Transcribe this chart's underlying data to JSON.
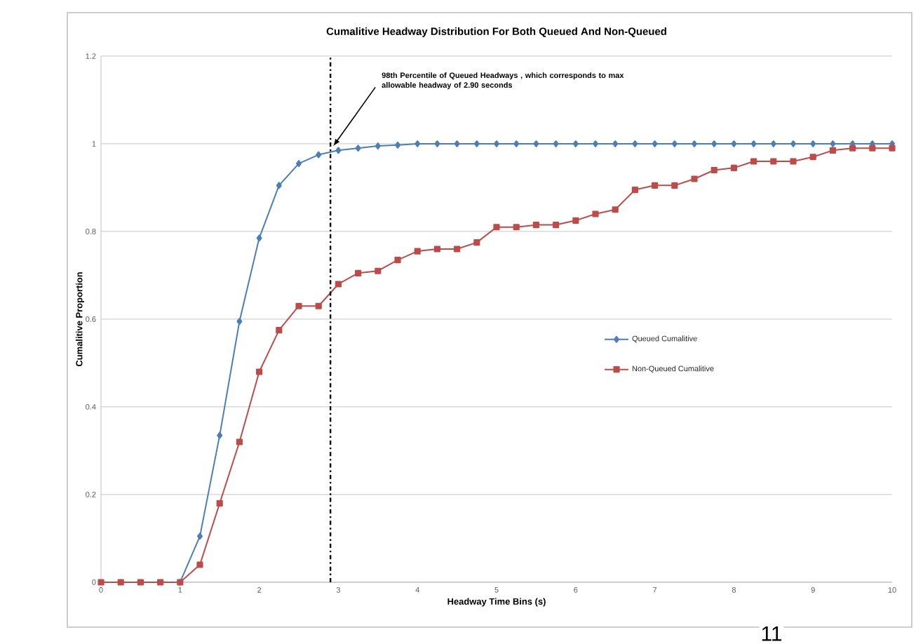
{
  "chart_data": {
    "type": "line",
    "title": "Cumalitive Headway Distribution For Both Queued And Non-Queued",
    "xlabel": "Headway Time Bins (s)",
    "ylabel": "Cumalitive Proportion",
    "x": [
      0,
      0.25,
      0.5,
      0.75,
      1,
      1.25,
      1.5,
      1.75,
      2,
      2.25,
      2.5,
      2.75,
      3,
      3.25,
      3.5,
      3.75,
      4,
      4.25,
      4.5,
      4.75,
      5,
      5.25,
      5.5,
      5.75,
      6,
      6.25,
      6.5,
      6.75,
      7,
      7.25,
      7.5,
      7.75,
      8,
      8.25,
      8.5,
      8.75,
      9,
      9.25,
      9.5,
      9.75,
      10
    ],
    "series": [
      {
        "name": "Queued Cumalitive",
        "color": "#4a7ebb",
        "marker": "diamond",
        "values": [
          null,
          null,
          null,
          null,
          0,
          0.105,
          0.335,
          0.595,
          0.785,
          0.905,
          0.955,
          0.975,
          0.985,
          0.99,
          0.995,
          0.997,
          1,
          1,
          1,
          1,
          1,
          1,
          1,
          1,
          1,
          1,
          1,
          1,
          1,
          1,
          1,
          1,
          1,
          1,
          1,
          1,
          1,
          1,
          1,
          1,
          1
        ]
      },
      {
        "name": "Non-Queued Cumalitive",
        "color": "#be4b48",
        "marker": "square",
        "values": [
          0,
          0,
          0,
          0,
          0,
          0.04,
          0.18,
          0.32,
          0.48,
          0.575,
          0.63,
          0.63,
          0.68,
          0.705,
          0.71,
          0.735,
          0.755,
          0.76,
          0.76,
          0.775,
          0.81,
          0.81,
          0.815,
          0.815,
          0.825,
          0.84,
          0.85,
          0.895,
          0.905,
          0.905,
          0.92,
          0.94,
          0.945,
          0.96,
          0.96,
          0.96,
          0.97,
          0.985,
          0.99,
          0.99,
          0.99
        ]
      }
    ],
    "xlim": [
      0,
      10
    ],
    "ylim": [
      0,
      1.2
    ],
    "xticks": [
      0,
      1,
      2,
      3,
      4,
      5,
      6,
      7,
      8,
      9,
      10
    ],
    "yticks": [
      0,
      0.2,
      0.4,
      0.6,
      0.8,
      1,
      1.2
    ],
    "grid": "y",
    "legend": "right",
    "ref_lines": [
      {
        "axis": "x",
        "value": 2.9,
        "line_style": "dashdot",
        "color": "#000000"
      }
    ],
    "annotations": [
      {
        "text": "98th Percentile of Queued Headways , which corresponds to max allowable headway of 2.90 seconds",
        "x": 2.9,
        "y": 0.985
      },
      "11"
    ]
  }
}
